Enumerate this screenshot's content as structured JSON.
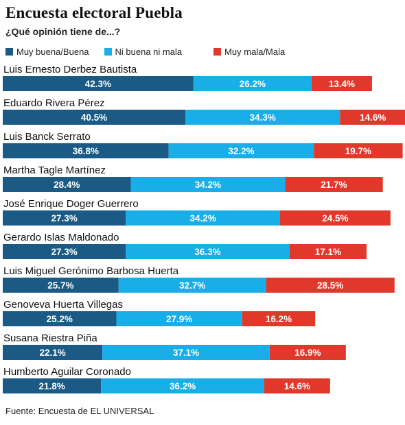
{
  "header": {
    "title": "Encuesta electoral Puebla",
    "subtitle": "¿Qué opinión tiene de...?"
  },
  "legend": [
    {
      "label": "Muy buena/Buena",
      "color": "#1a5a84"
    },
    {
      "label": "Ni buena ni mala",
      "color": "#1aaee8"
    },
    {
      "label": "Muy mala/Mala",
      "color": "#e0392b"
    }
  ],
  "chart_data": {
    "type": "bar",
    "orientation": "horizontal",
    "stacked": true,
    "categories": [
      "Luis Ernesto Derbez Bautista",
      "Eduardo Rivera Pérez",
      "Luis Banck Serrato",
      "Martha Tagle Martínez",
      "José Enrique Doger Guerrero",
      "Gerardo Islas Maldonado",
      "Luis Miguel Gerónimo Barbosa Huerta",
      "Genoveva Huerta Villegas",
      "Susana Riestra Piña",
      "Humberto Aguilar Coronado"
    ],
    "series": [
      {
        "name": "Muy buena/Buena",
        "color": "#1a5a84",
        "values": [
          42.3,
          40.5,
          36.8,
          28.4,
          27.3,
          27.3,
          25.7,
          25.2,
          22.1,
          21.8
        ]
      },
      {
        "name": "Ni buena ni mala",
        "color": "#1aaee8",
        "values": [
          26.2,
          34.3,
          32.2,
          34.2,
          34.2,
          36.3,
          32.7,
          27.9,
          37.1,
          36.2
        ]
      },
      {
        "name": "Muy mala/Mala",
        "color": "#e0392b",
        "values": [
          13.4,
          14.6,
          19.7,
          21.7,
          24.5,
          17.1,
          28.5,
          16.2,
          16.9,
          14.6
        ]
      }
    ],
    "value_suffix": "%",
    "xlim": [
      0,
      88
    ]
  },
  "footer": {
    "source": "Fuente: Encuesta de EL UNIVERSAL"
  }
}
